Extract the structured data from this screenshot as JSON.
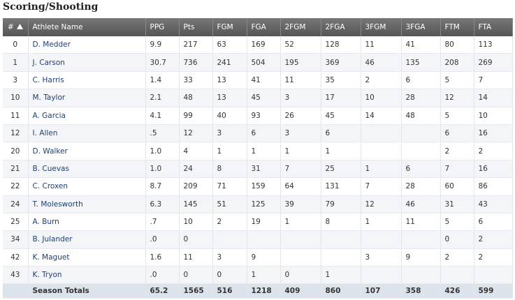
{
  "title": "Scoring/Shooting",
  "table": {
    "columns": [
      "#",
      "Athlete Name",
      "PPG",
      "Pts",
      "FGM",
      "FGA",
      "2FGM",
      "2FGA",
      "3FGM",
      "3FGA",
      "FTM",
      "FTA"
    ],
    "rows": [
      [
        "0",
        "D. Medder",
        "9.9",
        "217",
        "63",
        "169",
        "52",
        "128",
        "11",
        "41",
        "80",
        "113"
      ],
      [
        "1",
        "J. Carson",
        "30.7",
        "736",
        "241",
        "504",
        "195",
        "369",
        "46",
        "135",
        "208",
        "269"
      ],
      [
        "3",
        "C. Harris",
        "1.4",
        "33",
        "13",
        "41",
        "11",
        "35",
        "2",
        "6",
        "5",
        "7"
      ],
      [
        "10",
        "M. Taylor",
        "2.1",
        "48",
        "13",
        "45",
        "3",
        "17",
        "10",
        "28",
        "12",
        "14"
      ],
      [
        "11",
        "A. Garcia",
        "4.1",
        "99",
        "40",
        "93",
        "26",
        "45",
        "14",
        "48",
        "5",
        "10"
      ],
      [
        "12",
        "I. Allen",
        ".5",
        "12",
        "3",
        "6",
        "3",
        "6",
        null,
        null,
        "6",
        "16"
      ],
      [
        "20",
        "D. Walker",
        "1.0",
        "4",
        "1",
        "1",
        "1",
        "1",
        null,
        null,
        "2",
        "2"
      ],
      [
        "21",
        "B. Cuevas",
        "1.0",
        "24",
        "8",
        "31",
        "7",
        "25",
        "1",
        "6",
        "7",
        "16"
      ],
      [
        "22",
        "C. Croxen",
        "8.7",
        "209",
        "71",
        "159",
        "64",
        "131",
        "7",
        "28",
        "60",
        "86"
      ],
      [
        "24",
        "T. Molesworth",
        "6.3",
        "145",
        "51",
        "125",
        "39",
        "79",
        "12",
        "46",
        "31",
        "43"
      ],
      [
        "25",
        "A. Burn",
        ".7",
        "10",
        "2",
        "19",
        "1",
        "8",
        "1",
        "11",
        "5",
        "6"
      ],
      [
        "34",
        "B. Julander",
        ".0",
        "0",
        null,
        null,
        null,
        null,
        null,
        null,
        "0",
        "2"
      ],
      [
        "42",
        "K. Maguet",
        "1.6",
        "11",
        "3",
        "9",
        null,
        null,
        "3",
        "9",
        "2",
        "2"
      ],
      [
        "43",
        "K. Tryon",
        ".0",
        "0",
        "0",
        "1",
        "0",
        "1",
        null,
        null,
        null,
        null
      ]
    ],
    "totals": {
      "label": "Season Totals",
      "values": [
        "65.2",
        "1565",
        "516",
        "1218",
        "409",
        "860",
        "107",
        "358",
        "426",
        "599"
      ]
    }
  }
}
